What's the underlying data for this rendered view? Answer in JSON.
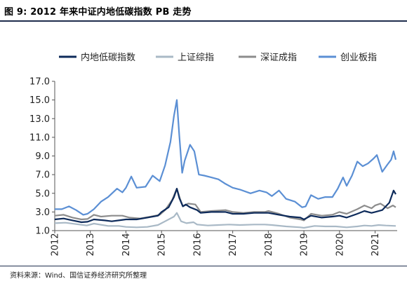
{
  "figure": {
    "title": "图 9:  2012 年来中证内地低碳指数 PB 走势",
    "source": "资料来源：Wind、国信证券经济研究所整理"
  },
  "chart_data": {
    "type": "line",
    "title": "",
    "xlabel": "",
    "ylabel": "",
    "xlim": [
      2012.0,
      2021.62
    ],
    "ylim": [
      1.0,
      17.0
    ],
    "yticks": [
      1.0,
      3.0,
      5.0,
      7.0,
      9.0,
      11.0,
      13.0,
      15.0,
      17.0
    ],
    "ytick_labels": [
      "1.0",
      "3.0",
      "5.0",
      "7.0",
      "9.0",
      "11.0",
      "13.0",
      "15.0",
      "17.0"
    ],
    "xticks": [
      2012,
      2013,
      2014,
      2015,
      2016,
      2017,
      2018,
      2019,
      2020,
      2021
    ],
    "xtick_labels": [
      "2012",
      "2013",
      "2014",
      "2015",
      "2016",
      "2017",
      "2018",
      "2019",
      "2020",
      "2021"
    ],
    "grid": false,
    "legend_position": "top",
    "series": [
      {
        "name": "内地低碳指数",
        "color": "#0d2a5a",
        "points": [
          [
            2012.0,
            2.2
          ],
          [
            2012.25,
            2.3
          ],
          [
            2012.5,
            2.1
          ],
          [
            2012.75,
            1.9
          ],
          [
            2012.92,
            1.95
          ],
          [
            2013.1,
            2.2
          ],
          [
            2013.4,
            2.1
          ],
          [
            2013.6,
            2.0
          ],
          [
            2013.8,
            2.1
          ],
          [
            2014.0,
            2.2
          ],
          [
            2014.3,
            2.2
          ],
          [
            2014.6,
            2.4
          ],
          [
            2014.9,
            2.6
          ],
          [
            2015.0,
            3.0
          ],
          [
            2015.2,
            3.5
          ],
          [
            2015.35,
            4.6
          ],
          [
            2015.43,
            5.5
          ],
          [
            2015.5,
            4.5
          ],
          [
            2015.6,
            3.6
          ],
          [
            2015.68,
            3.8
          ],
          [
            2015.8,
            3.5
          ],
          [
            2016.0,
            3.2
          ],
          [
            2016.1,
            2.9
          ],
          [
            2016.4,
            3.0
          ],
          [
            2016.8,
            3.0
          ],
          [
            2017.0,
            2.8
          ],
          [
            2017.3,
            2.8
          ],
          [
            2017.6,
            2.9
          ],
          [
            2017.9,
            2.9
          ],
          [
            2018.0,
            2.9
          ],
          [
            2018.3,
            2.7
          ],
          [
            2018.6,
            2.5
          ],
          [
            2018.9,
            2.4
          ],
          [
            2019.0,
            2.2
          ],
          [
            2019.2,
            2.6
          ],
          [
            2019.5,
            2.4
          ],
          [
            2019.8,
            2.5
          ],
          [
            2020.0,
            2.6
          ],
          [
            2020.2,
            2.4
          ],
          [
            2020.5,
            2.8
          ],
          [
            2020.7,
            3.1
          ],
          [
            2020.9,
            2.9
          ],
          [
            2021.0,
            3.0
          ],
          [
            2021.2,
            3.2
          ],
          [
            2021.4,
            4.0
          ],
          [
            2021.52,
            5.3
          ],
          [
            2021.58,
            4.9
          ]
        ]
      },
      {
        "name": "上证综指",
        "color": "#a9b9c6",
        "points": [
          [
            2012.0,
            1.8
          ],
          [
            2012.3,
            1.85
          ],
          [
            2012.6,
            1.7
          ],
          [
            2012.9,
            1.55
          ],
          [
            2013.1,
            1.75
          ],
          [
            2013.5,
            1.5
          ],
          [
            2013.8,
            1.5
          ],
          [
            2014.0,
            1.4
          ],
          [
            2014.3,
            1.35
          ],
          [
            2014.6,
            1.4
          ],
          [
            2014.9,
            1.6
          ],
          [
            2015.1,
            2.0
          ],
          [
            2015.35,
            2.5
          ],
          [
            2015.43,
            2.9
          ],
          [
            2015.55,
            2.0
          ],
          [
            2015.7,
            1.8
          ],
          [
            2015.9,
            1.9
          ],
          [
            2016.0,
            1.65
          ],
          [
            2016.3,
            1.55
          ],
          [
            2016.6,
            1.6
          ],
          [
            2016.9,
            1.65
          ],
          [
            2017.2,
            1.6
          ],
          [
            2017.6,
            1.65
          ],
          [
            2017.9,
            1.65
          ],
          [
            2018.1,
            1.6
          ],
          [
            2018.5,
            1.45
          ],
          [
            2018.9,
            1.35
          ],
          [
            2019.0,
            1.3
          ],
          [
            2019.3,
            1.5
          ],
          [
            2019.6,
            1.45
          ],
          [
            2019.9,
            1.45
          ],
          [
            2020.2,
            1.35
          ],
          [
            2020.5,
            1.45
          ],
          [
            2020.7,
            1.55
          ],
          [
            2020.9,
            1.5
          ],
          [
            2021.1,
            1.6
          ],
          [
            2021.3,
            1.55
          ],
          [
            2021.58,
            1.5
          ]
        ]
      },
      {
        "name": "深证成指",
        "color": "#8c8c8c",
        "points": [
          [
            2012.0,
            2.6
          ],
          [
            2012.25,
            2.7
          ],
          [
            2012.5,
            2.4
          ],
          [
            2012.75,
            2.2
          ],
          [
            2012.92,
            2.25
          ],
          [
            2013.1,
            2.7
          ],
          [
            2013.3,
            2.5
          ],
          [
            2013.6,
            2.6
          ],
          [
            2013.9,
            2.6
          ],
          [
            2014.1,
            2.4
          ],
          [
            2014.4,
            2.3
          ],
          [
            2014.7,
            2.5
          ],
          [
            2014.95,
            2.7
          ],
          [
            2015.1,
            3.2
          ],
          [
            2015.3,
            4.3
          ],
          [
            2015.43,
            5.5
          ],
          [
            2015.52,
            4.4
          ],
          [
            2015.6,
            3.6
          ],
          [
            2015.75,
            3.9
          ],
          [
            2015.95,
            3.8
          ],
          [
            2016.1,
            3.0
          ],
          [
            2016.4,
            3.1
          ],
          [
            2016.8,
            3.2
          ],
          [
            2017.0,
            3.0
          ],
          [
            2017.3,
            2.9
          ],
          [
            2017.6,
            3.0
          ],
          [
            2017.9,
            3.0
          ],
          [
            2018.0,
            3.1
          ],
          [
            2018.3,
            2.8
          ],
          [
            2018.6,
            2.4
          ],
          [
            2018.9,
            2.2
          ],
          [
            2019.0,
            2.1
          ],
          [
            2019.2,
            2.8
          ],
          [
            2019.5,
            2.6
          ],
          [
            2019.8,
            2.7
          ],
          [
            2020.0,
            3.0
          ],
          [
            2020.2,
            2.8
          ],
          [
            2020.5,
            3.3
          ],
          [
            2020.7,
            3.7
          ],
          [
            2020.9,
            3.4
          ],
          [
            2021.0,
            3.7
          ],
          [
            2021.15,
            3.9
          ],
          [
            2021.35,
            3.4
          ],
          [
            2021.5,
            3.7
          ],
          [
            2021.58,
            3.5
          ]
        ]
      },
      {
        "name": "创业板指",
        "color": "#5b8fd4",
        "points": [
          [
            2012.0,
            3.3
          ],
          [
            2012.2,
            3.3
          ],
          [
            2012.4,
            3.6
          ],
          [
            2012.6,
            3.2
          ],
          [
            2012.8,
            2.7
          ],
          [
            2012.92,
            2.8
          ],
          [
            2013.1,
            3.3
          ],
          [
            2013.3,
            4.1
          ],
          [
            2013.5,
            4.6
          ],
          [
            2013.75,
            5.5
          ],
          [
            2013.9,
            5.1
          ],
          [
            2014.0,
            5.6
          ],
          [
            2014.15,
            6.8
          ],
          [
            2014.3,
            5.6
          ],
          [
            2014.55,
            5.7
          ],
          [
            2014.75,
            6.9
          ],
          [
            2014.95,
            6.3
          ],
          [
            2015.1,
            8.0
          ],
          [
            2015.25,
            10.5
          ],
          [
            2015.35,
            13.3
          ],
          [
            2015.43,
            15.0
          ],
          [
            2015.5,
            11.2
          ],
          [
            2015.58,
            7.2
          ],
          [
            2015.65,
            8.5
          ],
          [
            2015.8,
            10.2
          ],
          [
            2015.92,
            9.5
          ],
          [
            2016.05,
            7.0
          ],
          [
            2016.2,
            6.9
          ],
          [
            2016.4,
            6.7
          ],
          [
            2016.6,
            6.5
          ],
          [
            2016.8,
            6.0
          ],
          [
            2017.0,
            5.6
          ],
          [
            2017.2,
            5.4
          ],
          [
            2017.5,
            5.0
          ],
          [
            2017.75,
            5.3
          ],
          [
            2017.95,
            5.1
          ],
          [
            2018.1,
            4.7
          ],
          [
            2018.3,
            5.3
          ],
          [
            2018.5,
            4.4
          ],
          [
            2018.75,
            4.1
          ],
          [
            2018.95,
            3.5
          ],
          [
            2019.05,
            3.6
          ],
          [
            2019.2,
            4.8
          ],
          [
            2019.4,
            4.4
          ],
          [
            2019.6,
            4.6
          ],
          [
            2019.8,
            4.6
          ],
          [
            2019.95,
            5.5
          ],
          [
            2020.1,
            6.7
          ],
          [
            2020.2,
            5.8
          ],
          [
            2020.35,
            6.9
          ],
          [
            2020.5,
            8.4
          ],
          [
            2020.65,
            7.9
          ],
          [
            2020.8,
            8.2
          ],
          [
            2020.95,
            8.7
          ],
          [
            2021.05,
            9.1
          ],
          [
            2021.2,
            7.3
          ],
          [
            2021.35,
            8.1
          ],
          [
            2021.45,
            8.6
          ],
          [
            2021.52,
            9.5
          ],
          [
            2021.58,
            8.6
          ]
        ]
      }
    ]
  }
}
